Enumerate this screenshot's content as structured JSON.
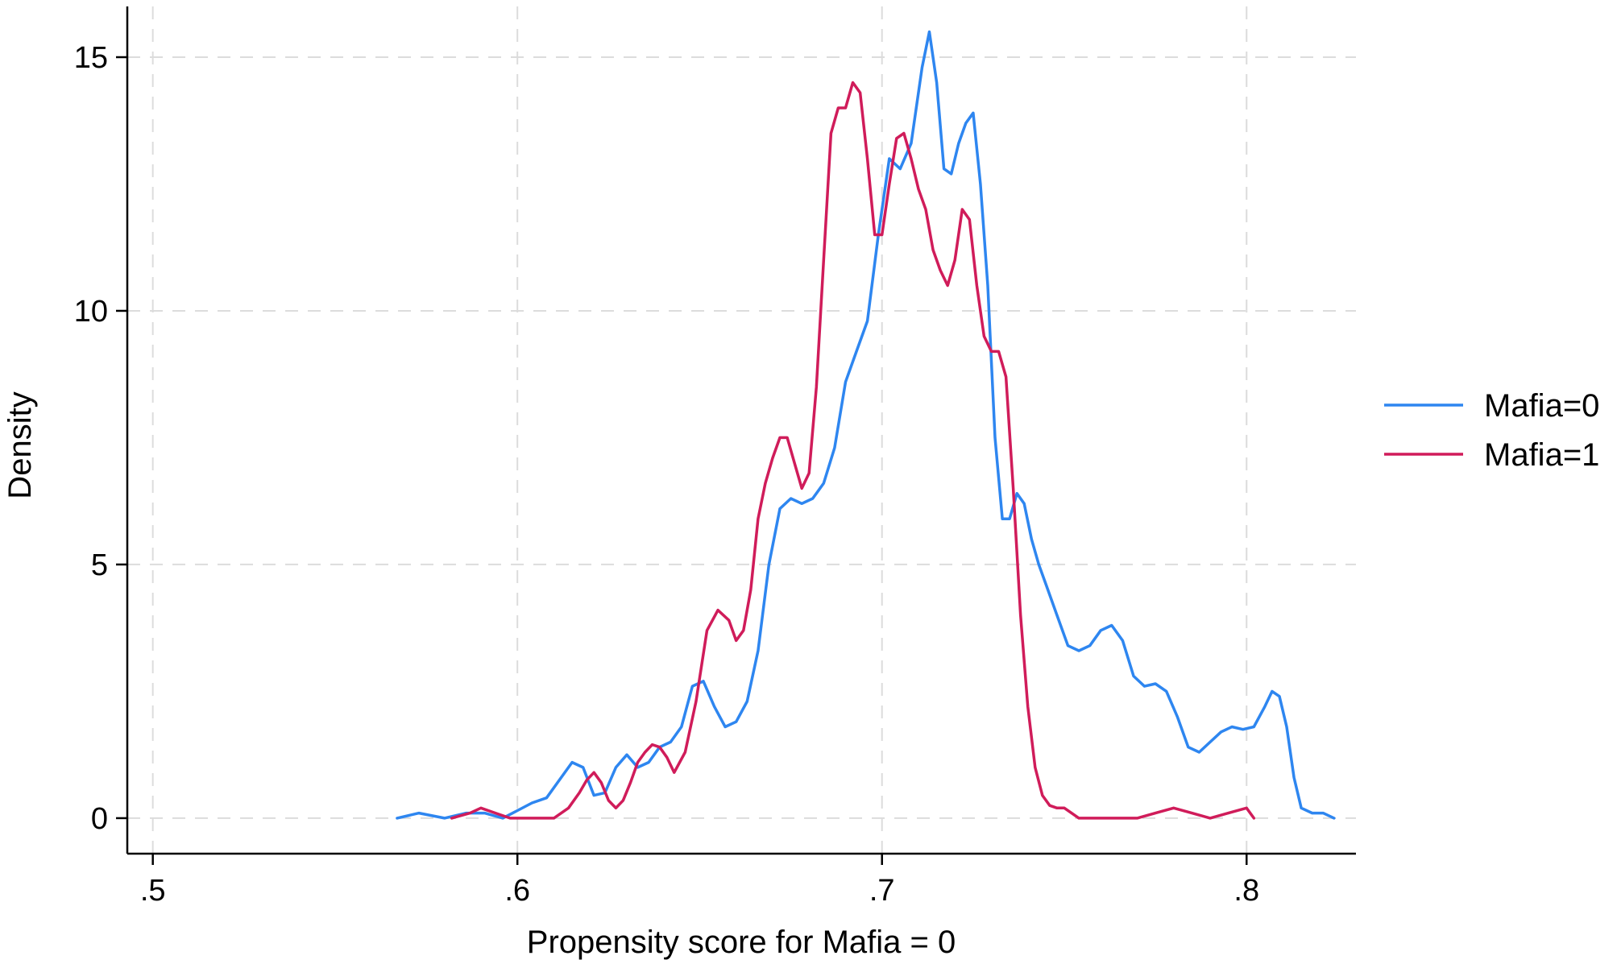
{
  "chart_data": {
    "type": "line",
    "title": "",
    "xlabel": "Propensity score for Mafia = 0",
    "ylabel": "Density",
    "xlim": [
      0.493,
      0.83
    ],
    "ylim": [
      -0.7,
      16.0
    ],
    "xticks": [
      0.5,
      0.6,
      0.7,
      0.8
    ],
    "xtick_labels": [
      ".5",
      ".6",
      ".7",
      ".8"
    ],
    "yticks": [
      0,
      5,
      10,
      15
    ],
    "ytick_labels": [
      "0",
      "5",
      "10",
      "15"
    ],
    "grid": true,
    "legend_position": "right",
    "series": [
      {
        "name": "Mafia=0",
        "color": "#2e86f0",
        "x": [
          0.567,
          0.573,
          0.58,
          0.586,
          0.591,
          0.596,
          0.6,
          0.604,
          0.608,
          0.612,
          0.615,
          0.618,
          0.621,
          0.624,
          0.627,
          0.63,
          0.633,
          0.636,
          0.639,
          0.642,
          0.645,
          0.648,
          0.651,
          0.654,
          0.657,
          0.66,
          0.663,
          0.666,
          0.669,
          0.672,
          0.675,
          0.678,
          0.681,
          0.684,
          0.687,
          0.69,
          0.693,
          0.696,
          0.699,
          0.702,
          0.705,
          0.708,
          0.711,
          0.713,
          0.715,
          0.717,
          0.719,
          0.721,
          0.723,
          0.725,
          0.727,
          0.729,
          0.731,
          0.733,
          0.735,
          0.737,
          0.739,
          0.741,
          0.743,
          0.745,
          0.748,
          0.751,
          0.754,
          0.757,
          0.76,
          0.763,
          0.766,
          0.769,
          0.772,
          0.775,
          0.778,
          0.781,
          0.784,
          0.787,
          0.79,
          0.793,
          0.796,
          0.799,
          0.802,
          0.805,
          0.807,
          0.809,
          0.811,
          0.813,
          0.815,
          0.818,
          0.821,
          0.824
        ],
        "y": [
          0.0,
          0.1,
          0.0,
          0.1,
          0.1,
          0.0,
          0.15,
          0.3,
          0.4,
          0.8,
          1.1,
          1.0,
          0.45,
          0.5,
          1.0,
          1.25,
          1.0,
          1.1,
          1.4,
          1.5,
          1.8,
          2.6,
          2.7,
          2.2,
          1.8,
          1.9,
          2.3,
          3.3,
          5.0,
          6.1,
          6.3,
          6.2,
          6.3,
          6.6,
          7.3,
          8.6,
          9.2,
          9.8,
          11.5,
          13.0,
          12.8,
          13.3,
          14.8,
          15.5,
          14.5,
          12.8,
          12.7,
          13.3,
          13.7,
          13.9,
          12.5,
          10.5,
          7.5,
          5.9,
          5.9,
          6.4,
          6.2,
          5.5,
          5.0,
          4.6,
          4.0,
          3.4,
          3.3,
          3.4,
          3.7,
          3.8,
          3.5,
          2.8,
          2.6,
          2.65,
          2.5,
          2.0,
          1.4,
          1.3,
          1.5,
          1.7,
          1.8,
          1.75,
          1.8,
          2.2,
          2.5,
          2.4,
          1.8,
          0.8,
          0.2,
          0.1,
          0.1,
          0.0
        ]
      },
      {
        "name": "Mafia=1",
        "color": "#d01c5a",
        "x": [
          0.582,
          0.587,
          0.59,
          0.594,
          0.598,
          0.602,
          0.606,
          0.61,
          0.614,
          0.617,
          0.619,
          0.621,
          0.623,
          0.625,
          0.627,
          0.629,
          0.631,
          0.633,
          0.635,
          0.637,
          0.639,
          0.641,
          0.643,
          0.646,
          0.649,
          0.652,
          0.655,
          0.658,
          0.66,
          0.662,
          0.664,
          0.666,
          0.668,
          0.67,
          0.672,
          0.674,
          0.676,
          0.678,
          0.68,
          0.682,
          0.684,
          0.686,
          0.688,
          0.69,
          0.692,
          0.694,
          0.696,
          0.698,
          0.7,
          0.702,
          0.704,
          0.706,
          0.708,
          0.71,
          0.712,
          0.714,
          0.716,
          0.718,
          0.72,
          0.722,
          0.724,
          0.726,
          0.728,
          0.73,
          0.732,
          0.734,
          0.736,
          0.738,
          0.74,
          0.742,
          0.744,
          0.746,
          0.748,
          0.75,
          0.752,
          0.754,
          0.756,
          0.758,
          0.761,
          0.764,
          0.767,
          0.77,
          0.775,
          0.78,
          0.785,
          0.79,
          0.795,
          0.8,
          0.802
        ],
        "y": [
          0.0,
          0.1,
          0.2,
          0.1,
          0.0,
          0.0,
          0.0,
          0.0,
          0.2,
          0.5,
          0.75,
          0.9,
          0.7,
          0.35,
          0.2,
          0.35,
          0.7,
          1.1,
          1.3,
          1.45,
          1.4,
          1.2,
          0.9,
          1.3,
          2.3,
          3.7,
          4.1,
          3.9,
          3.5,
          3.7,
          4.5,
          5.9,
          6.6,
          7.1,
          7.5,
          7.5,
          7.0,
          6.5,
          6.8,
          8.5,
          11.0,
          13.5,
          14.0,
          14.0,
          14.5,
          14.3,
          13.0,
          11.5,
          11.5,
          12.5,
          13.4,
          13.5,
          13.0,
          12.4,
          12.0,
          11.2,
          10.8,
          10.5,
          11.0,
          12.0,
          11.8,
          10.5,
          9.5,
          9.2,
          9.2,
          8.7,
          6.5,
          4.0,
          2.2,
          1.0,
          0.45,
          0.25,
          0.2,
          0.2,
          0.1,
          0.0,
          0.0,
          0.0,
          0.0,
          0.0,
          0.0,
          0.0,
          0.1,
          0.2,
          0.1,
          0.0,
          0.1,
          0.2,
          0.0
        ]
      }
    ]
  }
}
